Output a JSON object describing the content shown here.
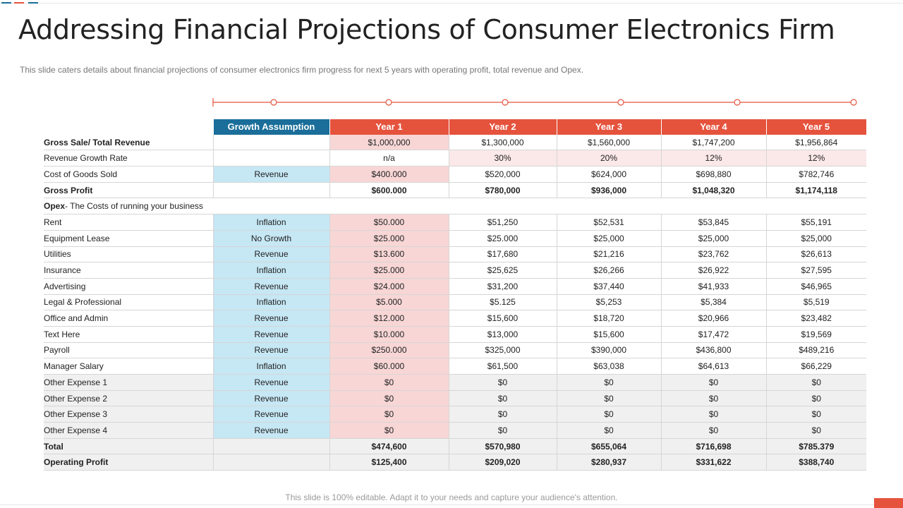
{
  "title": "Addressing Financial Projections of Consumer Electronics Firm",
  "subtitle": "This slide caters details about financial  projections of consumer electronics firm progress  for next 5 years with operating profit, total revenue  and Opex.",
  "footer": "This slide is 100% editable. Adapt it to your needs and capture your audience's attention.",
  "colors": {
    "accent": "#e5533d",
    "header_blue": "#1a6e99",
    "assumption_bg": "#c6e7f4",
    "year1_bg": "#f8d6d6"
  },
  "table": {
    "headers": [
      "Growth Assumption",
      "Year 1",
      "Year 2",
      "Year 3",
      "Year 4",
      "Year 5"
    ],
    "rows": [
      {
        "label": "Gross Sale/ Total Revenue",
        "assumption": "",
        "values": [
          "$1,000,000",
          "$1,300,000",
          "$1,560,000",
          "$1,747,200",
          "$1,956,864"
        ]
      },
      {
        "label": "Revenue Growth Rate",
        "assumption": "",
        "values": [
          "n/a",
          "30%",
          "20%",
          "12%",
          "12%"
        ]
      },
      {
        "label": "Cost of Goods Sold",
        "assumption": "Revenue",
        "values": [
          "$400.000",
          "$520,000",
          "$624,000",
          "$698,880",
          "$782,746"
        ]
      },
      {
        "label": "Gross Profit",
        "assumption": "",
        "values": [
          "$600.000",
          "$780,000",
          "$936,000",
          "$1,048,320",
          "$1,174,118"
        ]
      },
      {
        "label_bold": "Opex",
        "label_rest": "- The Costs of running your business"
      },
      {
        "label": "Rent",
        "assumption": "Inflation",
        "values": [
          "$50.000",
          "$51,250",
          "$52,531",
          "$53,845",
          "$55,191"
        ]
      },
      {
        "label": "Equipment Lease",
        "assumption": "No Growth",
        "values": [
          "$25.000",
          "$25.000",
          "$25,000",
          "$25,000",
          "$25,000"
        ]
      },
      {
        "label": "Utilities",
        "assumption": "Revenue",
        "values": [
          "$13.600",
          "$17,680",
          "$21,216",
          "$23,762",
          "$26,613"
        ]
      },
      {
        "label": "Insurance",
        "assumption": "Inflation",
        "values": [
          "$25.000",
          "$25,625",
          "$26,266",
          "$26,922",
          "$27,595"
        ]
      },
      {
        "label": "Advertising",
        "assumption": "Revenue",
        "values": [
          "$24.000",
          "$31,200",
          "$37,440",
          "$41,933",
          "$46,965"
        ]
      },
      {
        "label": "Legal & Professional",
        "assumption": "Inflation",
        "values": [
          "$5.000",
          "$5.125",
          "$5,253",
          "$5,384",
          "$5,519"
        ]
      },
      {
        "label": "Office and Admin",
        "assumption": "Revenue",
        "values": [
          "$12.000",
          "$15,600",
          "$18,720",
          "$20,966",
          "$23,482"
        ]
      },
      {
        "label": "Text Here",
        "assumption": "Revenue",
        "values": [
          "$10.000",
          "$13,000",
          "$15,600",
          "$17,472",
          "$19,569"
        ]
      },
      {
        "label": "Payroll",
        "assumption": "Revenue",
        "values": [
          "$250.000",
          "$325,000",
          "$390,000",
          "$436,800",
          "$489,216"
        ]
      },
      {
        "label": "Manager Salary",
        "assumption": "Inflation",
        "values": [
          "$60.000",
          "$61,500",
          "$63,038",
          "$64,613",
          "$66,229"
        ]
      },
      {
        "label": "Other Expense 1",
        "assumption": "Revenue",
        "values": [
          "$0",
          "$0",
          "$0",
          "$0",
          "$0"
        ]
      },
      {
        "label": "Other Expense 2",
        "assumption": "Revenue",
        "values": [
          "$0",
          "$0",
          "$0",
          "$0",
          "$0"
        ]
      },
      {
        "label": "Other Expense 3",
        "assumption": "Revenue",
        "values": [
          "$0",
          "$0",
          "$0",
          "$0",
          "$0"
        ]
      },
      {
        "label": "Other Expense 4",
        "assumption": "Revenue",
        "values": [
          "$0",
          "$0",
          "$0",
          "$0",
          "$0"
        ]
      },
      {
        "label": "Total",
        "assumption": "",
        "values": [
          "$474,600",
          "$570,980",
          "$655,064",
          "$716,698",
          "$785.379"
        ]
      },
      {
        "label": "Operating Profit",
        "assumption": "",
        "values": [
          "$125,400",
          "$209,020",
          "$280,937",
          "$331,622",
          "$388,740"
        ]
      }
    ]
  }
}
